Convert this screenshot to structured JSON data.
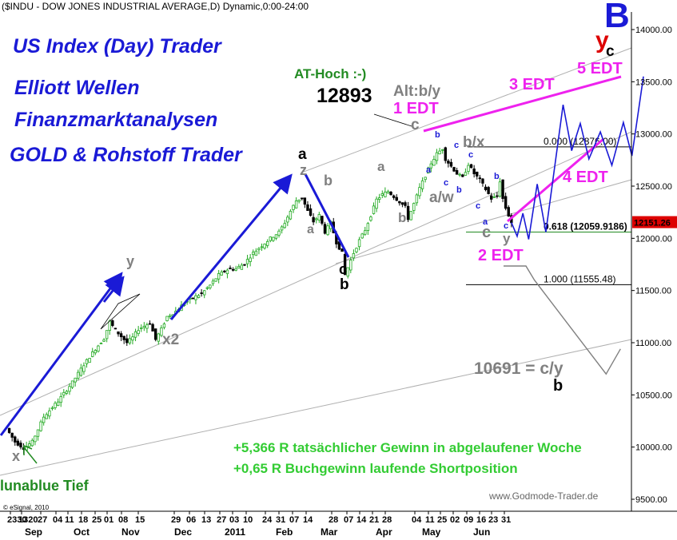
{
  "chart_data": {
    "type": "candlestick",
    "title": "($INDU - DOW JONES INDUSTRIAL AVERAGE,D) Dynamic,0:00-24:00",
    "headings": [
      "US Index (Day) Trader",
      "Elliott Wellen",
      "Finanzmarktanalysen",
      "GOLD & Rohstoff Trader"
    ],
    "ylim": [
      9500,
      14000
    ],
    "y_ticks": [
      "14000.00",
      "13500.00",
      "13000.00",
      "12500.00",
      "12000.00",
      "11500.00",
      "11000.00",
      "10500.00",
      "10000.00",
      "9500.00"
    ],
    "x_day_ticks": [
      "2330",
      "1320",
      "27",
      "04",
      "11",
      "18",
      "25",
      "01",
      "08",
      "15",
      "29",
      "06",
      "13",
      "27",
      "03",
      "10",
      "24",
      "31",
      "07",
      "14",
      "28",
      "07",
      "14",
      "21",
      "28",
      "04",
      "11",
      "25",
      "02",
      "09",
      "16",
      "23",
      "31"
    ],
    "x_month_labels": [
      "Sep",
      "Oct",
      "Nov",
      "Dec",
      "2011",
      "Feb",
      "Mar",
      "Apr",
      "May",
      "Jun"
    ],
    "last_price": "12151.26",
    "price_path": [
      [
        0,
        10180
      ],
      [
        3,
        10050
      ],
      [
        6,
        9990
      ],
      [
        9,
        10050
      ],
      [
        13,
        10290
      ],
      [
        18,
        10440
      ],
      [
        23,
        10620
      ],
      [
        27,
        10790
      ],
      [
        31,
        10940
      ],
      [
        34,
        11040
      ],
      [
        36,
        11200
      ],
      [
        38,
        11120
      ],
      [
        40,
        11060
      ],
      [
        42,
        11000
      ],
      [
        44,
        11050
      ],
      [
        46,
        11130
      ],
      [
        48,
        11160
      ],
      [
        50,
        11190
      ],
      [
        52,
        11030
      ],
      [
        54,
        11130
      ],
      [
        56,
        11250
      ],
      [
        59,
        11300
      ],
      [
        62,
        11380
      ],
      [
        65,
        11430
      ],
      [
        68,
        11470
      ],
      [
        71,
        11550
      ],
      [
        74,
        11650
      ],
      [
        77,
        11700
      ],
      [
        80,
        11710
      ],
      [
        83,
        11760
      ],
      [
        86,
        11860
      ],
      [
        89,
        11930
      ],
      [
        92,
        12000
      ],
      [
        95,
        12060
      ],
      [
        97,
        12150
      ],
      [
        99,
        12260
      ],
      [
        101,
        12360
      ],
      [
        103,
        12390
      ],
      [
        105,
        12260
      ],
      [
        107,
        12160
      ],
      [
        109,
        12220
      ],
      [
        111,
        12060
      ],
      [
        113,
        12150
      ],
      [
        115,
        11960
      ],
      [
        117,
        11860
      ],
      [
        118,
        11650
      ],
      [
        119,
        11720
      ],
      [
        121,
        11860
      ],
      [
        123,
        11980
      ],
      [
        125,
        12080
      ],
      [
        127,
        12220
      ],
      [
        129,
        12370
      ],
      [
        131,
        12420
      ],
      [
        133,
        12450
      ],
      [
        135,
        12400
      ],
      [
        137,
        12350
      ],
      [
        139,
        12300
      ],
      [
        140,
        12190
      ],
      [
        142,
        12330
      ],
      [
        144,
        12480
      ],
      [
        146,
        12600
      ],
      [
        148,
        12720
      ],
      [
        150,
        12810
      ],
      [
        152,
        12860
      ],
      [
        153,
        12760
      ],
      [
        155,
        12690
      ],
      [
        157,
        12620
      ],
      [
        159,
        12580
      ],
      [
        161,
        12710
      ],
      [
        163,
        12620
      ],
      [
        165,
        12560
      ],
      [
        167,
        12470
      ],
      [
        169,
        12380
      ],
      [
        171,
        12400
      ],
      [
        172,
        12550
      ],
      [
        173,
        12380
      ],
      [
        174,
        12290
      ],
      [
        175,
        12220
      ],
      [
        176,
        12151
      ]
    ],
    "fib_levels": [
      {
        "label": "0.000 (12876.00)",
        "value": 12876
      },
      {
        "label": "0.618 (12059.9186)",
        "value": 12059.9186
      },
      {
        "label": "1.000 (11555.48)",
        "value": 11555.48
      }
    ],
    "projection_path": [
      [
        176,
        12151
      ],
      [
        178,
        12020
      ],
      [
        180,
        12240
      ],
      [
        182,
        11990
      ],
      [
        185,
        12520
      ],
      [
        188,
        12060
      ],
      [
        194,
        13280
      ],
      [
        197,
        12840
      ],
      [
        200,
        13100
      ],
      [
        203,
        12760
      ],
      [
        207,
        13020
      ],
      [
        211,
        12700
      ],
      [
        215,
        13110
      ],
      [
        218,
        12790
      ],
      [
        222,
        13550
      ]
    ],
    "correction_path": [
      [
        184,
        11600
      ],
      [
        209,
        10700
      ],
      [
        214,
        10940
      ]
    ],
    "annotations": [
      {
        "text": "AT-Hoch :-)",
        "color": "#228b22"
      },
      {
        "text": "12893",
        "color": "#000000"
      },
      {
        "text": "Alt:b/y",
        "color": "#808080"
      },
      {
        "text": "1 EDT",
        "color": "#ee22ee"
      },
      {
        "text": "3 EDT",
        "color": "#ee22ee"
      },
      {
        "text": "5 EDT",
        "color": "#ee22ee"
      },
      {
        "text": "4 EDT",
        "color": "#ee22ee"
      },
      {
        "text": "2 EDT",
        "color": "#ee22ee"
      },
      {
        "text": "B",
        "color": "#1a1ad6"
      },
      {
        "text": "y",
        "color": "#dd0000"
      },
      {
        "text": "c",
        "color": "#000000"
      },
      {
        "text": "b/x",
        "color": "#808080"
      },
      {
        "text": "a/w",
        "color": "#808080"
      },
      {
        "text": "10691 = c/y",
        "color": "#808080"
      },
      {
        "text": "x",
        "color": "#808080"
      },
      {
        "text": "y",
        "color": "#808080"
      },
      {
        "text": "x2",
        "color": "#808080"
      },
      {
        "text": "z",
        "color": "#808080"
      },
      {
        "text": "a",
        "color": "#000000"
      },
      {
        "text": "b",
        "color": "#808080"
      },
      {
        "text": "a",
        "color": "#808080"
      },
      {
        "text": "c",
        "color": "#000000"
      },
      {
        "text": "b",
        "color": "#000000"
      },
      {
        "text": "a",
        "color": "#808080"
      },
      {
        "text": "b",
        "color": "#808080"
      },
      {
        "text": "c",
        "color": "#808080"
      },
      {
        "text": "y",
        "color": "#808080"
      },
      {
        "text": "c",
        "color": "#808080"
      },
      {
        "text": "b",
        "color": "#000000"
      },
      {
        "text": "c",
        "color": "#1a1ad6"
      },
      {
        "text": "b",
        "color": "#1a1ad6"
      },
      {
        "text": "a",
        "color": "#1a1ad6"
      },
      {
        "text": "c",
        "color": "#1a1ad6"
      },
      {
        "text": "c",
        "color": "#1a1ad6"
      },
      {
        "text": "b",
        "color": "#1a1ad6"
      },
      {
        "text": "c",
        "color": "#1a1ad6"
      },
      {
        "text": "a",
        "color": "#1a1ad6"
      },
      {
        "text": "b",
        "color": "#1a1ad6"
      },
      {
        "text": "c",
        "color": "#1a1ad6"
      },
      {
        "text": "lunablue Tief",
        "color": "#228b22"
      }
    ],
    "info_lines": [
      "+5,366 R tatsächlicher Gewinn in abgelaufener Woche",
      "+0,65 R Buchgewinn laufende Shortposition"
    ],
    "credit": "www.Godmode-Trader.de",
    "copyright": "© eSignal, 2010",
    "colors": {
      "candle_up": "#22aa22",
      "candle_down": "#000000",
      "wave": "#1a1ad6",
      "edt": "#ee22ee",
      "channel": "#b0b0b0",
      "last_price_bg": "#dd0000",
      "fib_618": "#228b22"
    }
  }
}
